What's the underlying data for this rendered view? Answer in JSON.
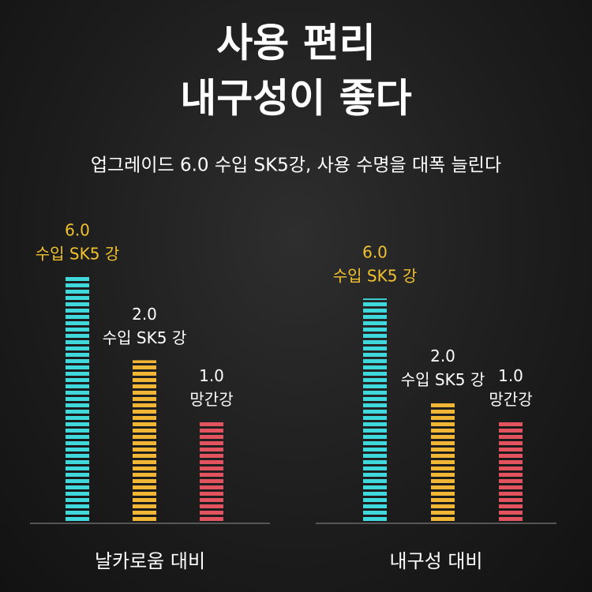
{
  "header": {
    "title": [
      "사용 편리",
      "내구성이 좋다"
    ],
    "subtitle": "업그레이드 6.0 수입 SK5강, 사용 수명을 대폭 늘린다"
  },
  "chart_data": [
    {
      "type": "bar",
      "xlabel": "날카로움 대비",
      "categories": [
        [
          "6.0",
          "수입 SK5 강"
        ],
        [
          "2.0",
          "수입 SK5 강"
        ],
        [
          "1.0",
          "망간강"
        ]
      ],
      "values": [
        100,
        66,
        41
      ],
      "ylim": [
        0,
        100
      ],
      "colors": [
        "#3fd8dc",
        "#f2b636",
        "#e2525f"
      ],
      "label_colors": [
        "#f2c12e",
        "#ffffff",
        "#ffffff"
      ]
    },
    {
      "type": "bar",
      "xlabel": "내구성 대비",
      "categories": [
        [
          "6.0",
          "수입 SK5 강"
        ],
        [
          "2.0",
          "수입 SK5 강"
        ],
        [
          "1.0",
          "망간강"
        ]
      ],
      "values": [
        91,
        49,
        41
      ],
      "ylim": [
        0,
        100
      ],
      "colors": [
        "#3fd8dc",
        "#f2b636",
        "#e2525f"
      ],
      "label_colors": [
        "#f2c12e",
        "#ffffff",
        "#ffffff"
      ]
    }
  ]
}
